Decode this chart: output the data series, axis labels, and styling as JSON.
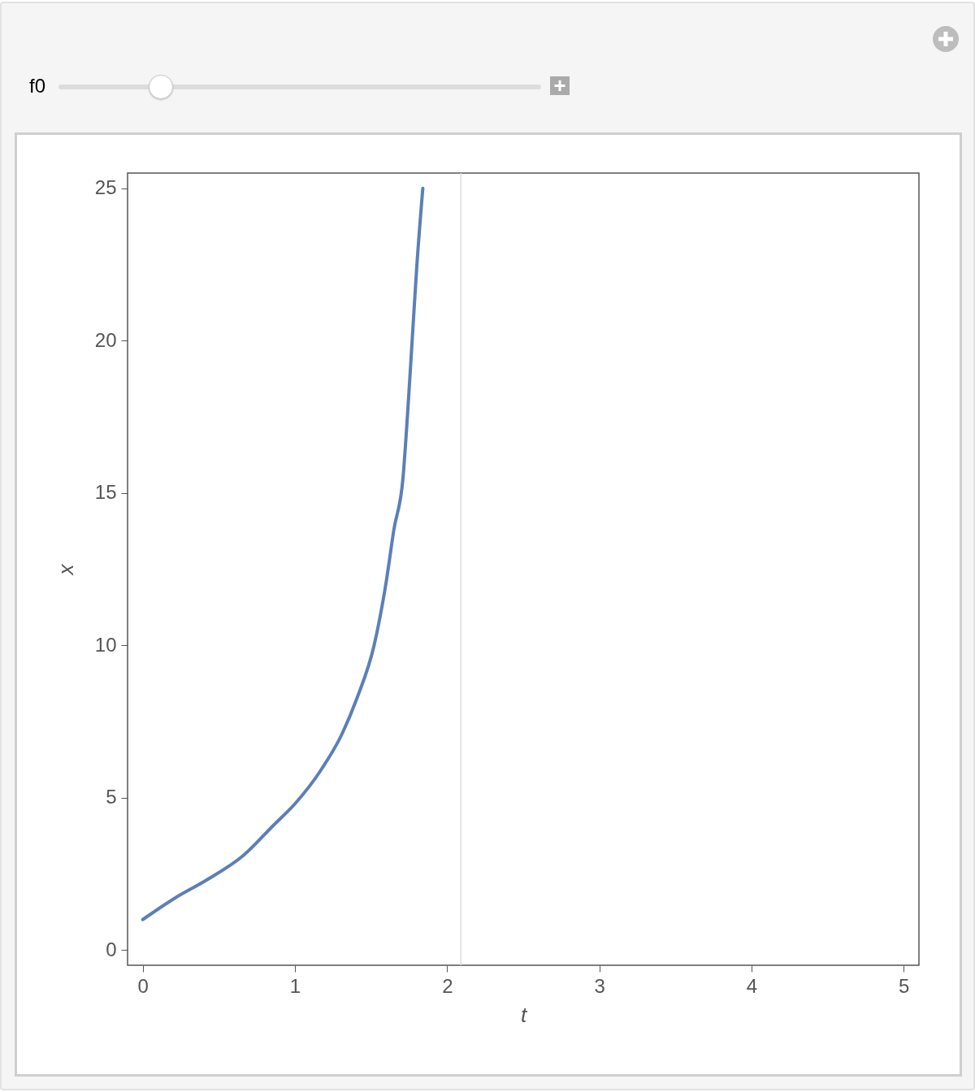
{
  "chart_data": {
    "type": "line",
    "xlabel": "t",
    "ylabel": "x",
    "x": [
      0,
      0.21,
      0.42,
      0.66,
      0.86,
      1,
      1.17,
      1.31,
      1.41,
      1.52,
      1.6,
      1.65,
      1.71,
      1.74,
      1.77,
      1.8,
      1.84
    ],
    "series": [
      {
        "color": "#5b7fb8",
        "values": [
          1,
          1.7,
          2.3,
          3.1,
          4.1,
          4.8,
          5.9,
          7.1,
          8.3,
          10,
          12.1,
          13.8,
          15.5,
          17.6,
          20,
          22.4,
          25
        ]
      }
    ],
    "xlim": [
      -0.1,
      5.1
    ],
    "ylim": [
      -0.5,
      25.5
    ],
    "xticks": [
      0,
      1,
      2,
      3,
      4,
      5
    ],
    "yticks": [
      0,
      5,
      10,
      15,
      20,
      25
    ],
    "ref_lines": [
      {
        "axis": "x",
        "value": 2.09,
        "color": "#dddddd"
      }
    ],
    "marker": "none",
    "line_style": "solid",
    "annotations": [
      "f0"
    ]
  }
}
